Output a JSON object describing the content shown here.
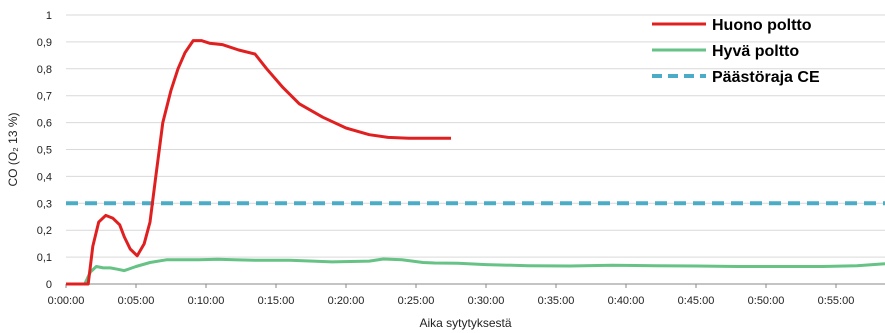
{
  "chart_data": {
    "type": "line",
    "title": "",
    "xlabel": "Aika sytytyksestä",
    "ylabel": "CO (O₂ 13 %)",
    "ylim": [
      0,
      1
    ],
    "yticks": [
      "0",
      "0,1",
      "0,2",
      "0,3",
      "0,4",
      "0,5",
      "0,6",
      "0,7",
      "0,8",
      "0,9",
      "1"
    ],
    "xlim_minutes": [
      0,
      58.5
    ],
    "xticks": [
      "0:00:00",
      "0:05:00",
      "0:10:00",
      "0:15:00",
      "0:20:00",
      "0:25:00",
      "0:30:00",
      "0:35:00",
      "0:40:00",
      "0:45:00",
      "0:50:00",
      "0:55:00"
    ],
    "grid": "horizontal",
    "legend_position": "top-right",
    "series": [
      {
        "name": "Huono poltto",
        "color": "#e02020",
        "style": "solid",
        "x": [
          "0:00:00",
          "0:01:35",
          "0:01:55",
          "0:02:20",
          "0:02:50",
          "0:03:20",
          "0:03:50",
          "0:04:10",
          "0:04:35",
          "0:05:05",
          "0:05:35",
          "0:06:00",
          "0:06:25",
          "0:06:55",
          "0:07:30",
          "0:08:00",
          "0:08:30",
          "0:09:05",
          "0:09:40",
          "0:10:15",
          "0:11:10",
          "0:12:20",
          "0:13:30",
          "0:14:20",
          "0:15:30",
          "0:16:40",
          "0:18:20",
          "0:20:00",
          "0:21:40",
          "0:23:00",
          "0:24:30",
          "0:26:00",
          "0:27:30"
        ],
        "y": [
          0,
          0,
          0.14,
          0.23,
          0.255,
          0.245,
          0.22,
          0.175,
          0.13,
          0.105,
          0.15,
          0.23,
          0.4,
          0.6,
          0.72,
          0.8,
          0.86,
          0.905,
          0.905,
          0.895,
          0.89,
          0.87,
          0.855,
          0.8,
          0.73,
          0.67,
          0.62,
          0.58,
          0.555,
          0.545,
          0.542,
          0.542,
          0.542
        ]
      },
      {
        "name": "Hyvä poltto",
        "color": "#66c285",
        "style": "solid",
        "x": [
          "0:00:00",
          "0:01:20",
          "0:01:45",
          "0:02:10",
          "0:02:40",
          "0:03:10",
          "0:03:40",
          "0:04:10",
          "0:05:00",
          "0:06:00",
          "0:07:10",
          "0:08:20",
          "0:09:30",
          "0:10:50",
          "0:12:00",
          "0:13:30",
          "0:16:00",
          "0:19:00",
          "0:21:40",
          "0:22:40",
          "0:24:00",
          "0:25:30",
          "0:26:20",
          "0:28:00",
          "0:30:00",
          "0:33:00",
          "0:36:00",
          "0:39:00",
          "0:42:00",
          "0:45:00",
          "0:48:00",
          "0:51:00",
          "0:54:00",
          "0:56:30",
          "0:58:30"
        ],
        "y": [
          0,
          0,
          0.045,
          0.065,
          0.06,
          0.06,
          0.055,
          0.05,
          0.065,
          0.08,
          0.09,
          0.09,
          0.09,
          0.092,
          0.09,
          0.088,
          0.088,
          0.082,
          0.085,
          0.093,
          0.09,
          0.08,
          0.078,
          0.077,
          0.072,
          0.068,
          0.067,
          0.07,
          0.068,
          0.067,
          0.065,
          0.065,
          0.065,
          0.068,
          0.075
        ]
      },
      {
        "name": "Päästöraja CE",
        "color": "#4bacc6",
        "style": "dashed",
        "x": [
          "0:00:00",
          "0:58:30"
        ],
        "y": [
          0.3,
          0.3
        ]
      }
    ]
  }
}
